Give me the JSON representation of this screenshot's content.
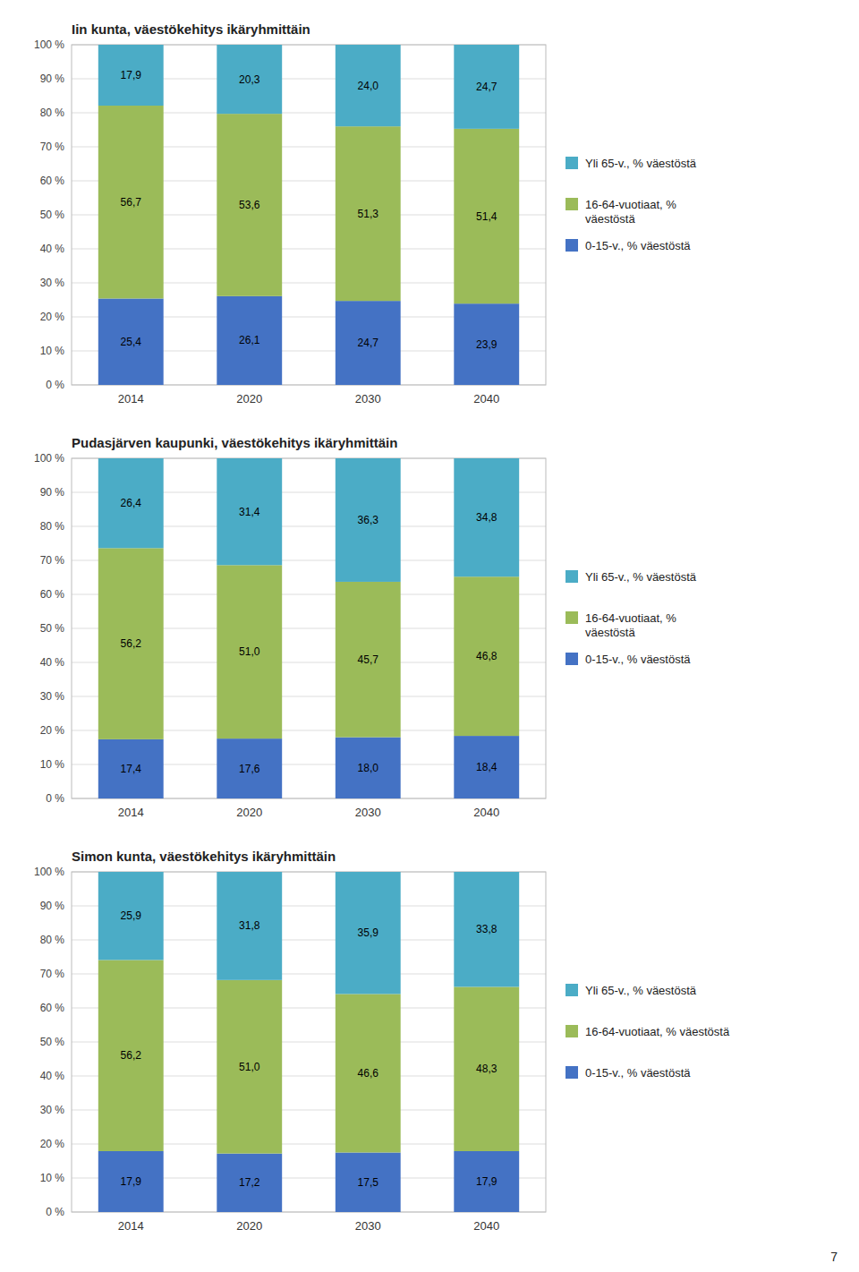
{
  "chart_data": [
    {
      "type": "bar",
      "stacked": true,
      "title": "Iin kunta, väestökehitys ikäryhmittäin",
      "categories": [
        "2014",
        "2020",
        "2030",
        "2040"
      ],
      "series": [
        {
          "name": "0-15-v., % väestöstä",
          "color": "#4472C4",
          "values": [
            25.4,
            26.1,
            24.7,
            23.9
          ],
          "value_labels": [
            "25,4",
            "26,1",
            "24,7",
            "23,9"
          ]
        },
        {
          "name": "16-64-vuotiaat, %\nväestöstä",
          "color": "#9BBB59",
          "values": [
            56.7,
            53.6,
            51.3,
            51.4
          ],
          "value_labels": [
            "56,7",
            "53,6",
            "51,3",
            "51,4"
          ]
        },
        {
          "name": "Yli 65-v., % väestöstä",
          "color": "#4BACC6",
          "values": [
            17.9,
            20.3,
            24.0,
            24.7
          ],
          "value_labels": [
            "17,9",
            "20,3",
            "24,0",
            "24,7"
          ]
        }
      ],
      "ylim": [
        0,
        100
      ],
      "yticks": [
        {
          "value": 0,
          "label": "0 %"
        },
        {
          "value": 10,
          "label": "10 %"
        },
        {
          "value": 20,
          "label": "20 %"
        },
        {
          "value": 30,
          "label": "30 %"
        },
        {
          "value": 40,
          "label": "40 %"
        },
        {
          "value": 50,
          "label": "50 %"
        },
        {
          "value": 60,
          "label": "60 %"
        },
        {
          "value": 70,
          "label": "70 %"
        },
        {
          "value": 80,
          "label": "80 %"
        },
        {
          "value": 90,
          "label": "90 %"
        },
        {
          "value": 100,
          "label": "100 %"
        }
      ],
      "grid": true,
      "legend": "right",
      "data_labels": true
    },
    {
      "type": "bar",
      "stacked": true,
      "title": "Pudasjärven kaupunki, väestökehitys ikäryhmittäin",
      "categories": [
        "2014",
        "2020",
        "2030",
        "2040"
      ],
      "series": [
        {
          "name": "0-15-v., % väestöstä",
          "color": "#4472C4",
          "values": [
            17.4,
            17.6,
            18.0,
            18.4
          ],
          "value_labels": [
            "17,4",
            "17,6",
            "18,0",
            "18,4"
          ]
        },
        {
          "name": "16-64-vuotiaat, %\nväestöstä",
          "color": "#9BBB59",
          "values": [
            56.2,
            51.0,
            45.7,
            46.8
          ],
          "value_labels": [
            "56,2",
            "51,0",
            "45,7",
            "46,8"
          ]
        },
        {
          "name": "Yli 65-v., % väestöstä",
          "color": "#4BACC6",
          "values": [
            26.4,
            31.4,
            36.3,
            34.8
          ],
          "value_labels": [
            "26,4",
            "31,4",
            "36,3",
            "34,8"
          ]
        }
      ],
      "ylim": [
        0,
        100
      ],
      "yticks": [
        {
          "value": 0,
          "label": "0 %"
        },
        {
          "value": 10,
          "label": "10 %"
        },
        {
          "value": 20,
          "label": "20 %"
        },
        {
          "value": 30,
          "label": "30 %"
        },
        {
          "value": 40,
          "label": "40 %"
        },
        {
          "value": 50,
          "label": "50 %"
        },
        {
          "value": 60,
          "label": "60 %"
        },
        {
          "value": 70,
          "label": "70 %"
        },
        {
          "value": 80,
          "label": "80 %"
        },
        {
          "value": 90,
          "label": "90 %"
        },
        {
          "value": 100,
          "label": "100 %"
        }
      ],
      "grid": true,
      "legend": "right",
      "data_labels": true
    },
    {
      "type": "bar",
      "stacked": true,
      "title": "Simon kunta, väestökehitys ikäryhmittäin",
      "categories": [
        "2014",
        "2020",
        "2030",
        "2040"
      ],
      "series": [
        {
          "name": "0-15-v., % väestöstä",
          "color": "#4472C4",
          "values": [
            17.9,
            17.2,
            17.5,
            17.9
          ],
          "value_labels": [
            "17,9",
            "17,2",
            "17,5",
            "17,9"
          ]
        },
        {
          "name": "16-64-vuotiaat, % väestöstä",
          "color": "#9BBB59",
          "values": [
            56.2,
            51.0,
            46.6,
            48.3
          ],
          "value_labels": [
            "56,2",
            "51,0",
            "46,6",
            "48,3"
          ]
        },
        {
          "name": "Yli 65-v., % väestöstä",
          "color": "#4BACC6",
          "values": [
            25.9,
            31.8,
            35.9,
            33.8
          ],
          "value_labels": [
            "25,9",
            "31,8",
            "35,9",
            "33,8"
          ]
        }
      ],
      "ylim": [
        0,
        100
      ],
      "yticks": [
        {
          "value": 0,
          "label": "0 %"
        },
        {
          "value": 10,
          "label": "10 %"
        },
        {
          "value": 20,
          "label": "20 %"
        },
        {
          "value": 30,
          "label": "30 %"
        },
        {
          "value": 40,
          "label": "40 %"
        },
        {
          "value": 50,
          "label": "50 %"
        },
        {
          "value": 60,
          "label": "60 %"
        },
        {
          "value": 70,
          "label": "70 %"
        },
        {
          "value": 80,
          "label": "80 %"
        },
        {
          "value": 90,
          "label": "90 %"
        },
        {
          "value": 100,
          "label": "100 %"
        }
      ],
      "grid": true,
      "legend": "right",
      "data_labels": true,
      "annotations": [
        "7"
      ]
    }
  ]
}
